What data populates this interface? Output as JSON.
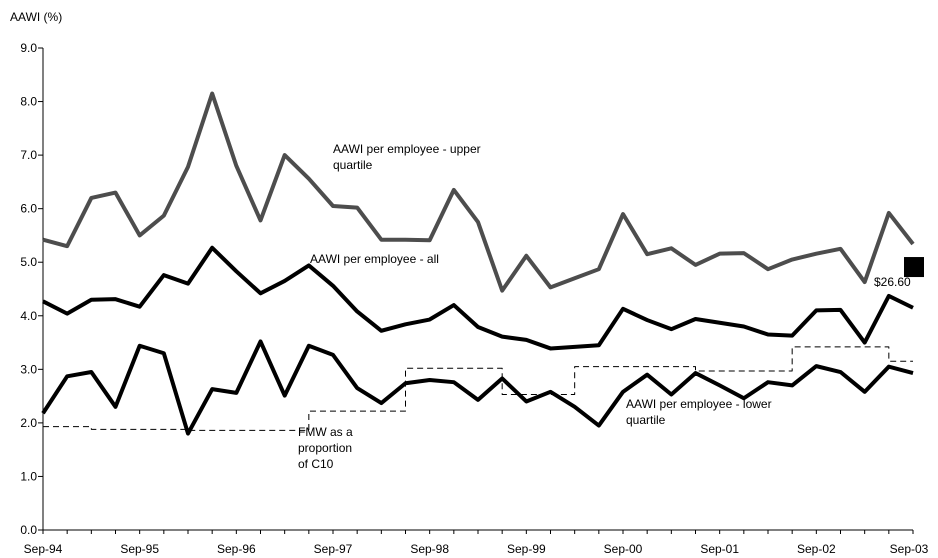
{
  "chart_data": {
    "type": "line",
    "ylabel": "AAWI (%)",
    "ylim": [
      0,
      9
    ],
    "yticks": [
      "0.0",
      "1.0",
      "2.0",
      "3.0",
      "4.0",
      "5.0",
      "6.0",
      "7.0",
      "8.0",
      "9.0"
    ],
    "xtick_labels": [
      "Sep-94",
      "Sep-95",
      "Sep-96",
      "Sep-97",
      "Sep-98",
      "Sep-99",
      "Sep-00",
      "Sep-01",
      "Sep-02",
      "Sep-03"
    ],
    "grid": false,
    "legend": "none",
    "series": [
      {
        "name": "AAWI per employee - upper quartile",
        "style": "thick-grey",
        "color": "#4d4d4d",
        "label_lines": [
          "AAWI per employee - upper",
          "quartile"
        ],
        "values": [
          5.42,
          5.3,
          6.2,
          6.3,
          5.5,
          5.87,
          6.78,
          8.15,
          6.8,
          5.78,
          7.0,
          6.56,
          6.05,
          6.02,
          5.42,
          5.42,
          5.41,
          6.35,
          5.75,
          4.47,
          5.12,
          4.53,
          4.7,
          4.87,
          5.9,
          5.15,
          5.26,
          4.95,
          5.16,
          5.17,
          4.87,
          5.05,
          5.16,
          5.25,
          4.63,
          5.92,
          5.34
        ]
      },
      {
        "name": "AAWI per employee - all",
        "style": "thick-black",
        "color": "#000000",
        "label_lines": [
          "AAWI per employee - all"
        ],
        "values": [
          4.27,
          4.04,
          4.3,
          4.31,
          4.17,
          4.76,
          4.6,
          5.27,
          4.83,
          4.42,
          4.65,
          4.94,
          4.56,
          4.08,
          3.72,
          3.84,
          3.93,
          4.2,
          3.79,
          3.61,
          3.55,
          3.39,
          3.42,
          3.45,
          4.13,
          3.92,
          3.75,
          3.94,
          3.87,
          3.8,
          3.65,
          3.63,
          4.1,
          4.11,
          3.5,
          4.37,
          4.15
        ]
      },
      {
        "name": "AAWI per employee - lower quartile",
        "style": "thick-black",
        "color": "#000000",
        "label_lines": [
          "AAWI per employee - lower",
          "quartile"
        ],
        "values": [
          2.18,
          2.87,
          2.95,
          2.3,
          3.44,
          3.3,
          1.8,
          2.63,
          2.56,
          3.52,
          2.51,
          3.44,
          3.27,
          2.65,
          2.37,
          2.74,
          2.8,
          2.76,
          2.43,
          2.83,
          2.4,
          2.58,
          2.3,
          1.95,
          2.58,
          2.9,
          2.53,
          2.93,
          2.7,
          2.46,
          2.76,
          2.7,
          3.06,
          2.95,
          2.58,
          3.05,
          2.93
        ]
      },
      {
        "name": "FMW as a proportion of C10",
        "style": "dashed",
        "color": "#000000",
        "label_lines": [
          "FMW as a",
          "proportion",
          "of C10"
        ],
        "values": [
          1.93,
          1.93,
          1.88,
          1.88,
          1.88,
          1.88,
          1.86,
          1.86,
          1.86,
          1.86,
          1.86,
          2.22,
          2.22,
          2.22,
          2.22,
          3.02,
          3.02,
          3.02,
          3.02,
          2.53,
          2.53,
          2.53,
          3.05,
          3.05,
          3.05,
          3.05,
          3.05,
          2.97,
          2.97,
          2.97,
          2.97,
          3.42,
          3.42,
          3.42,
          3.42,
          3.15,
          3.15
        ]
      }
    ],
    "annotation": {
      "text": "$26.60",
      "y": 4.91
    }
  }
}
